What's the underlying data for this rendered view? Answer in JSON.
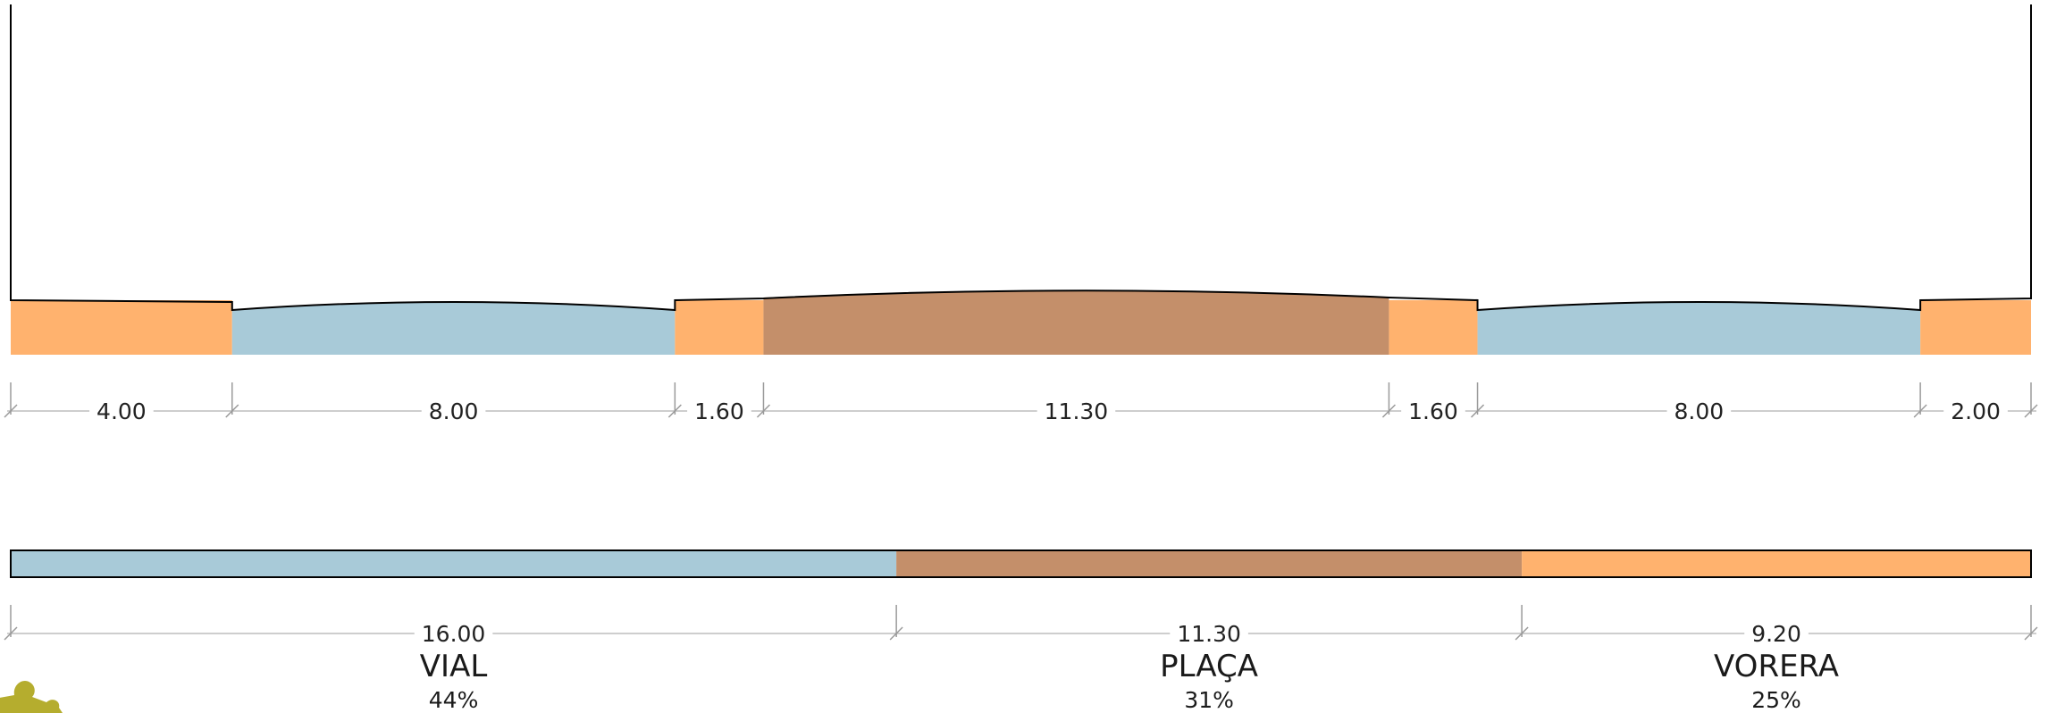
{
  "colors": {
    "vial": "#a8cad8",
    "placa": "#c48f6a",
    "vorera": "#ffb26e",
    "logo": "#b5ad2e"
  },
  "section": {
    "segments": [
      {
        "kind": "vorera",
        "width": 4.0,
        "label": "4.00"
      },
      {
        "kind": "vial",
        "width": 8.0,
        "label": "8.00"
      },
      {
        "kind": "vorera",
        "width": 1.6,
        "label": "1.60"
      },
      {
        "kind": "placa",
        "width": 11.3,
        "label": "11.30"
      },
      {
        "kind": "vorera",
        "width": 1.6,
        "label": "1.60"
      },
      {
        "kind": "vial",
        "width": 8.0,
        "label": "8.00"
      },
      {
        "kind": "vorera",
        "width": 2.0,
        "label": "2.00"
      }
    ]
  },
  "summary": {
    "categories": [
      {
        "kind": "vial",
        "value": 16.0,
        "label": "16.00",
        "name": "VIAL",
        "percent": "44%"
      },
      {
        "kind": "placa",
        "value": 11.3,
        "label": "11.30",
        "name": "PLAÇA",
        "percent": "31%"
      },
      {
        "kind": "vorera",
        "value": 9.2,
        "label": "9.20",
        "name": "VORERA",
        "percent": "25%"
      }
    ]
  },
  "logo": {
    "icon": "puzzle-piece-icon"
  }
}
